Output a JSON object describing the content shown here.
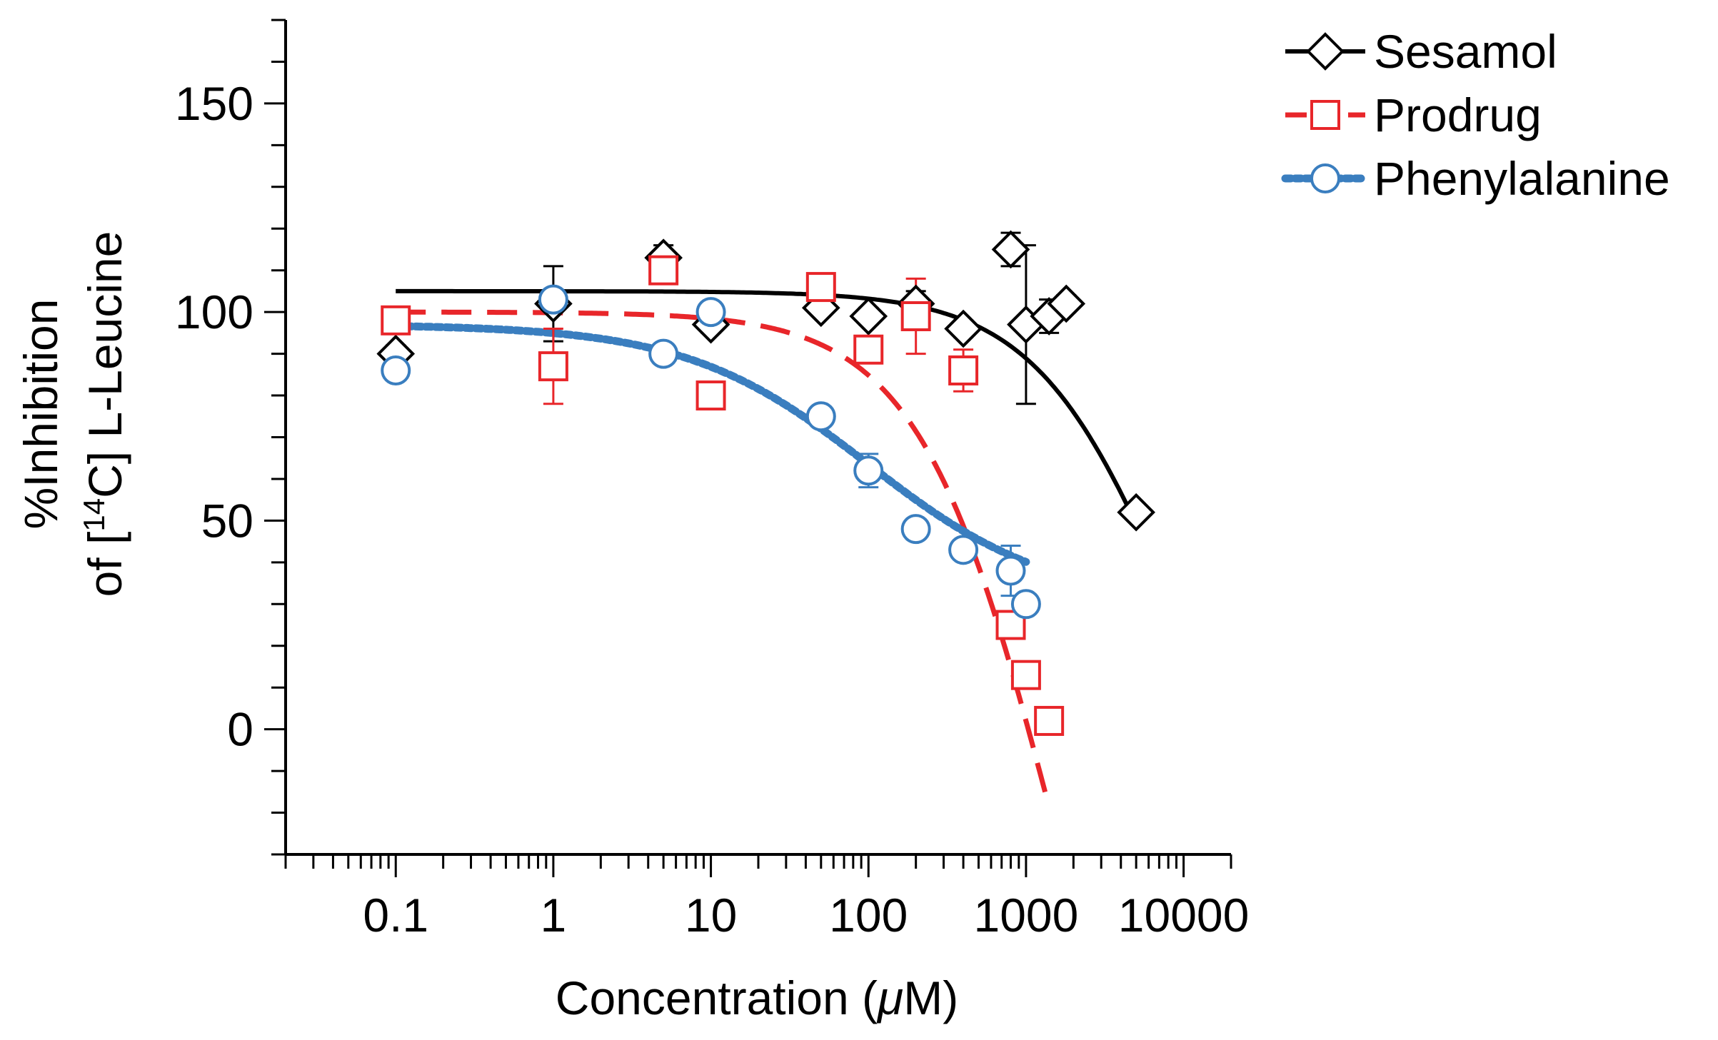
{
  "chart_data": {
    "type": "scatter",
    "title": "",
    "xlabel_main": "Concentration (",
    "xlabel_mu": "μ",
    "xlabel_end": "M)",
    "ylabel_line1": "%Inhibition",
    "ylabel_line2_pre": "of [",
    "ylabel_line2_sup": "14",
    "ylabel_line2_post": "C] L-Leucine",
    "xscale": "log",
    "xlim": [
      0.02,
      20000
    ],
    "ylim": [
      -30,
      170
    ],
    "xticks": [
      0.1,
      1,
      10,
      100,
      1000,
      10000
    ],
    "xtick_labels": [
      "0.1",
      "1",
      "10",
      "100",
      "1000",
      "10000"
    ],
    "yticks": [
      0,
      50,
      100,
      150
    ],
    "ytick_labels": [
      "0",
      "50",
      "100",
      "150"
    ],
    "legend_position": "top-right",
    "series": [
      {
        "name": "Sesamol",
        "color": "#000000",
        "marker": "diamond",
        "line": "solid",
        "points": [
          {
            "x": 0.1,
            "y": 90,
            "err": 2
          },
          {
            "x": 1,
            "y": 102,
            "err": 9
          },
          {
            "x": 5,
            "y": 113,
            "err": 3
          },
          {
            "x": 10,
            "y": 97,
            "err": 2
          },
          {
            "x": 50,
            "y": 101,
            "err": 2
          },
          {
            "x": 100,
            "y": 99,
            "err": 2
          },
          {
            "x": 200,
            "y": 102,
            "err": 3
          },
          {
            "x": 400,
            "y": 96,
            "err": 2
          },
          {
            "x": 800,
            "y": 115,
            "err": 4
          },
          {
            "x": 1000,
            "y": 97,
            "err": 19
          },
          {
            "x": 1400,
            "y": 99,
            "err": 4
          },
          {
            "x": 1800,
            "y": 102,
            "err": 2
          },
          {
            "x": 5000,
            "y": 52,
            "err": 0
          }
        ],
        "fit": {
          "top": 105,
          "bottom": -40,
          "ic50": 8000,
          "hill": 1.0,
          "xmin": 0.1,
          "xmax": 5000
        }
      },
      {
        "name": "Prodrug",
        "color": "#e8262a",
        "marker": "square",
        "line": "dashed",
        "points": [
          {
            "x": 0.1,
            "y": 98,
            "err": 2
          },
          {
            "x": 1,
            "y": 87,
            "err": 9
          },
          {
            "x": 5,
            "y": 110,
            "err": 2
          },
          {
            "x": 10,
            "y": 80,
            "err": 3
          },
          {
            "x": 50,
            "y": 106,
            "err": 2
          },
          {
            "x": 100,
            "y": 91,
            "err": 2
          },
          {
            "x": 200,
            "y": 99,
            "err": 9
          },
          {
            "x": 400,
            "y": 86,
            "err": 5
          },
          {
            "x": 800,
            "y": 25,
            "err": 2
          },
          {
            "x": 1000,
            "y": 13,
            "err": 2
          },
          {
            "x": 1400,
            "y": 2,
            "err": 2
          }
        ],
        "fit": {
          "top": 100,
          "bottom": -150,
          "ic50": 1550,
          "hill": 1.0,
          "xmin": 0.1,
          "xmax": 1400
        }
      },
      {
        "name": "Phenylalanine",
        "color": "#3a7ebf",
        "marker": "circle",
        "line": "dotted",
        "points": [
          {
            "x": 0.1,
            "y": 86,
            "err": 2
          },
          {
            "x": 1,
            "y": 103,
            "err": 2
          },
          {
            "x": 5,
            "y": 90,
            "err": 2
          },
          {
            "x": 10,
            "y": 100,
            "err": 2
          },
          {
            "x": 50,
            "y": 75,
            "err": 2
          },
          {
            "x": 100,
            "y": 62,
            "err": 4
          },
          {
            "x": 200,
            "y": 48,
            "err": 2
          },
          {
            "x": 400,
            "y": 43,
            "err": 2
          },
          {
            "x": 800,
            "y": 38,
            "err": 6
          },
          {
            "x": 1000,
            "y": 30,
            "err": 2
          }
        ],
        "fit": {
          "top": 97,
          "bottom": 30,
          "ic50": 100,
          "hill": 0.75,
          "xmin": 0.1,
          "xmax": 1000
        }
      }
    ]
  }
}
